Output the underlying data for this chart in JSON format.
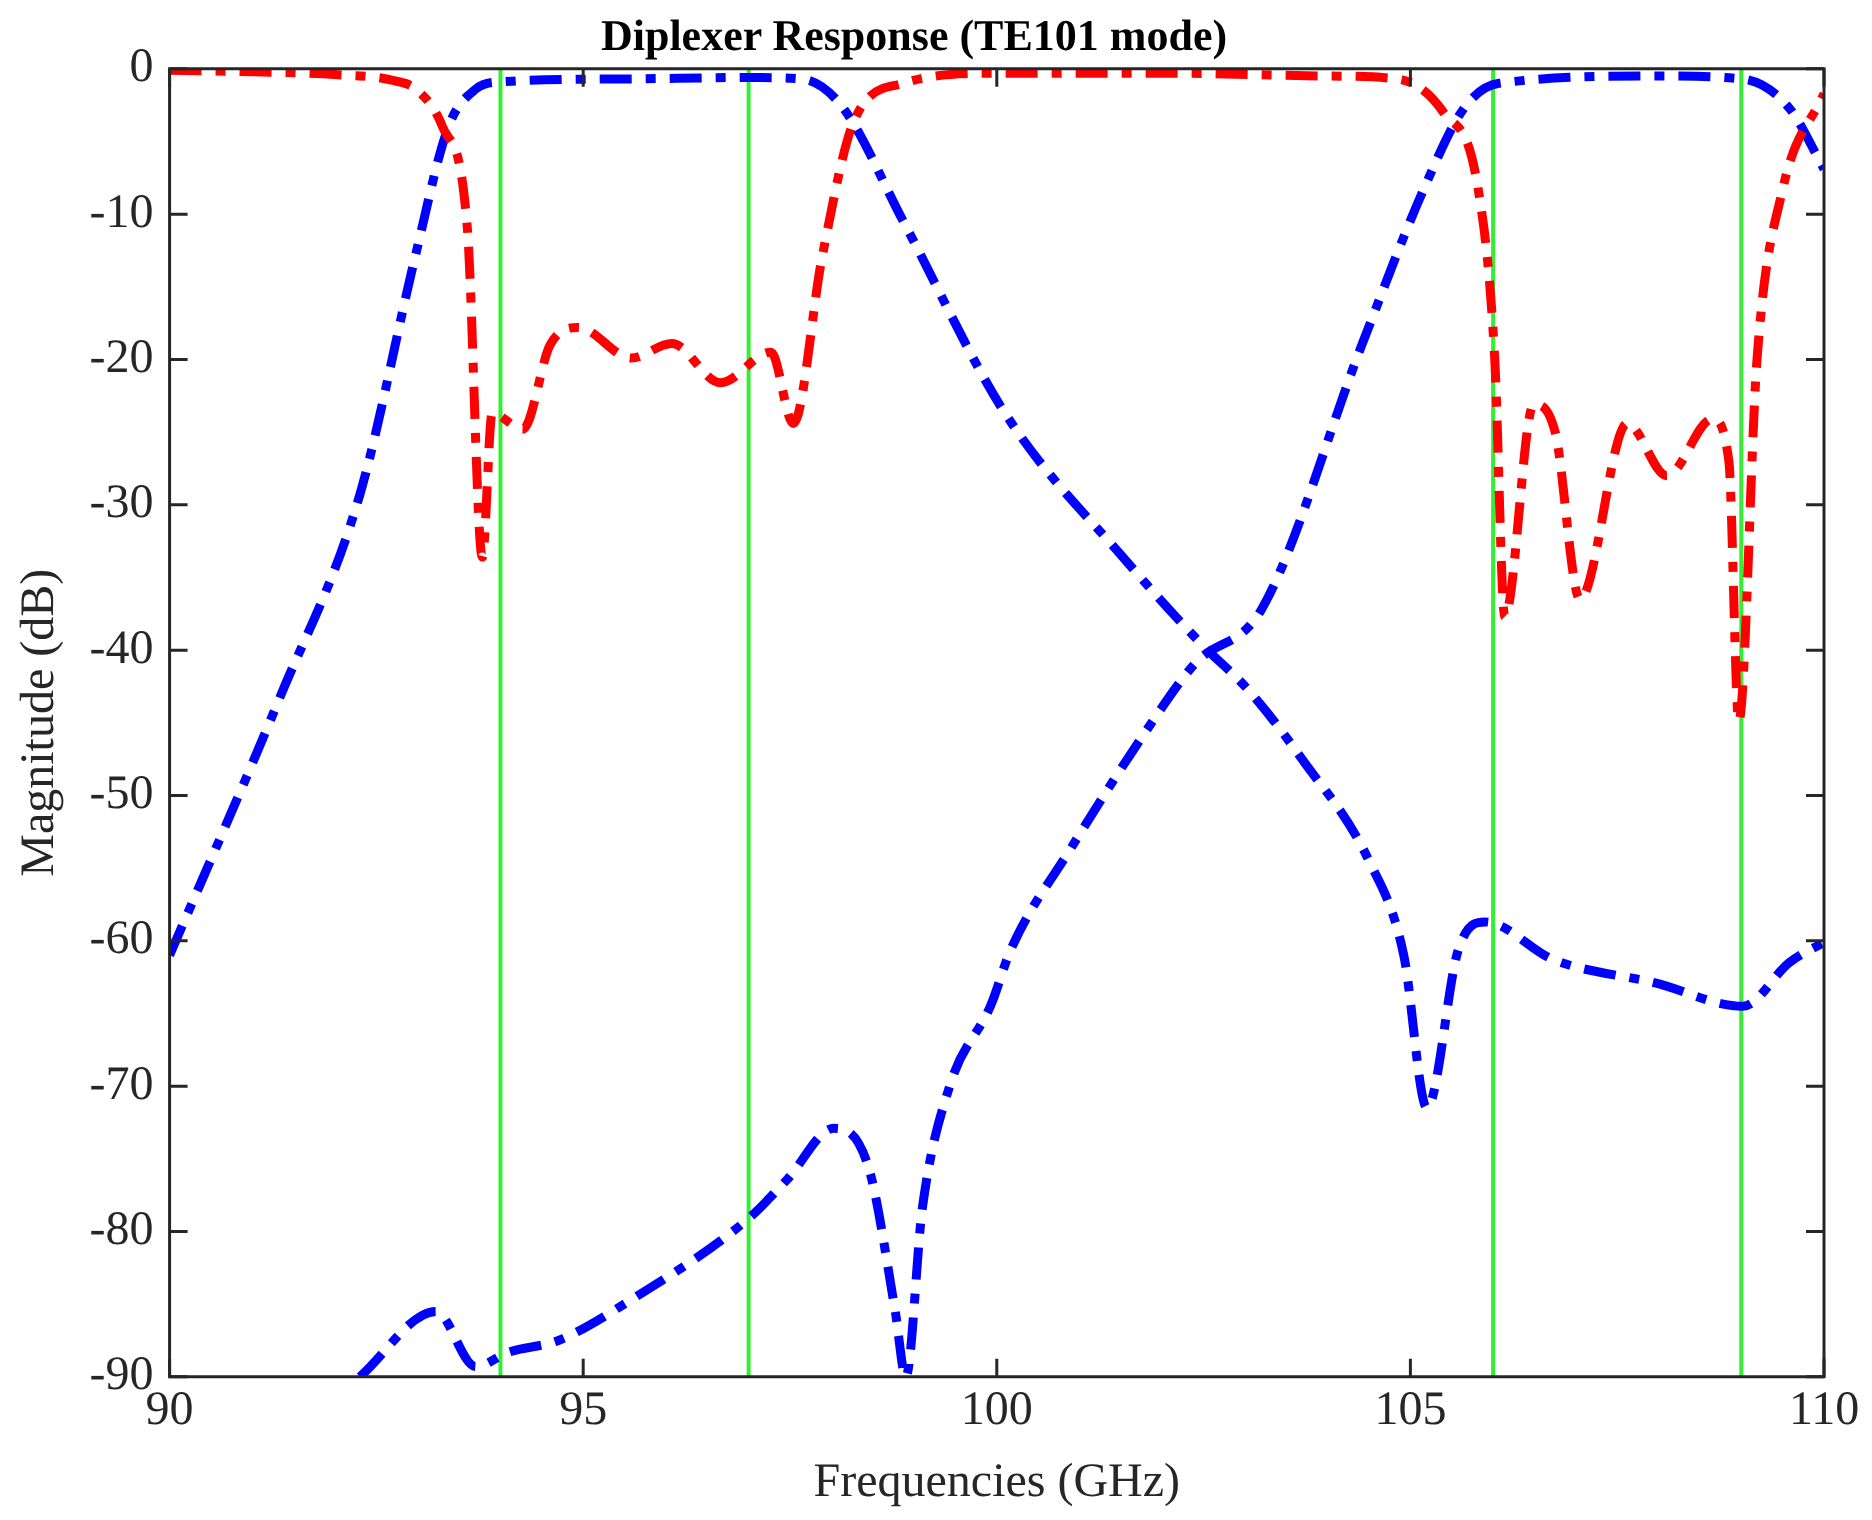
{
  "chart_data": {
    "type": "line",
    "title": "Diplexer Response (TE101 mode)",
    "xlabel": "Frequencies (GHz)",
    "ylabel": "Magnitude (dB)",
    "xlim": [
      90,
      110
    ],
    "xticks": [
      90,
      95,
      100,
      105,
      110
    ],
    "ylim": [
      -90,
      0
    ],
    "yticks": [
      -90,
      -80,
      -70,
      -60,
      -50,
      -40,
      -30,
      -20,
      -10,
      0
    ],
    "grid": false,
    "legend": false,
    "marker": "none",
    "line_style": "dashed",
    "ref_lines": [
      {
        "axis": "x",
        "value": 94,
        "color": "#33ee33"
      },
      {
        "axis": "x",
        "value": 97,
        "color": "#33ee33"
      },
      {
        "axis": "x",
        "value": 106,
        "color": "#33ee33"
      },
      {
        "axis": "x",
        "value": 109,
        "color": "#33ee33"
      }
    ],
    "series": [
      {
        "color": "#ff0000",
        "x": [
          90,
          91,
          92,
          92.7,
          93,
          93.3,
          93.6,
          93.78,
          93.9,
          94.27,
          94.6,
          94.94,
          95.58,
          96.07,
          96.66,
          97.27,
          97.54,
          97.89,
          98.28,
          98.87,
          100,
          102,
          104,
          104.84,
          105.4,
          105.82,
          106.02,
          106.14,
          106.49,
          106.75,
          107.05,
          107.62,
          108.1,
          108.65,
          108.85,
          108.97,
          109.19,
          109.5,
          110
        ],
        "values": [
          -0.1,
          -0.2,
          -0.4,
          -0.8,
          -1.5,
          -4,
          -11,
          -33.6,
          -23.7,
          -24.8,
          -19,
          -17.8,
          -19.9,
          -18.9,
          -21.6,
          -19.5,
          -24.4,
          -12.9,
          -3.5,
          -1,
          -0.3,
          -0.3,
          -0.5,
          -0.7,
          -3,
          -8.3,
          -20,
          -37.7,
          -23.1,
          -25,
          -36.5,
          -24.4,
          -28,
          -24.1,
          -27,
          -44.9,
          -20,
          -8.3,
          -1.7
        ]
      },
      {
        "color": "#0000ff",
        "x": [
          90,
          91.33,
          92.3,
          92.97,
          93.37,
          93.7,
          94,
          95.5,
          97,
          97.64,
          98.13,
          98.87,
          100.1,
          101.57,
          102.46,
          103.05,
          103.69,
          104.5,
          104.92,
          105.2,
          105.58,
          105.9,
          106.73,
          107.96,
          109.02,
          109.58,
          110
        ],
        "values": [
          -61,
          -43.3,
          -29.3,
          -12.9,
          -4,
          -1.4,
          -0.9,
          -0.7,
          -0.6,
          -0.7,
          -2.6,
          -10.5,
          -23.7,
          -33.9,
          -39.5,
          -42.8,
          -47.5,
          -54.5,
          -61,
          -71.5,
          -60.6,
          -58.7,
          -61.3,
          -62.9,
          -64.5,
          -61.5,
          -60.1
        ]
      },
      {
        "color": "#0000ff",
        "x": [
          92.3,
          93.22,
          93.7,
          94.1,
          94.7,
          95.58,
          96.98,
          97.47,
          98.03,
          98.45,
          98.77,
          98.9,
          99.1,
          99.43,
          99.93,
          100.17,
          100.9,
          101.8,
          102.4,
          103.2,
          104.42,
          105.16,
          105.65,
          106.07,
          108,
          109.02,
          109.58,
          110
        ],
        "values": [
          -90,
          -85.5,
          -89.3,
          -88.3,
          -87.5,
          -84.7,
          -79.2,
          -76.4,
          -72.9,
          -75.6,
          -85.4,
          -90,
          -78.4,
          -70,
          -64.4,
          -60.6,
          -53.6,
          -45.6,
          -40.9,
          -37.2,
          -18.9,
          -8.3,
          -2.7,
          -1,
          -0.5,
          -0.7,
          -2.7,
          -6.9
        ]
      }
    ]
  }
}
